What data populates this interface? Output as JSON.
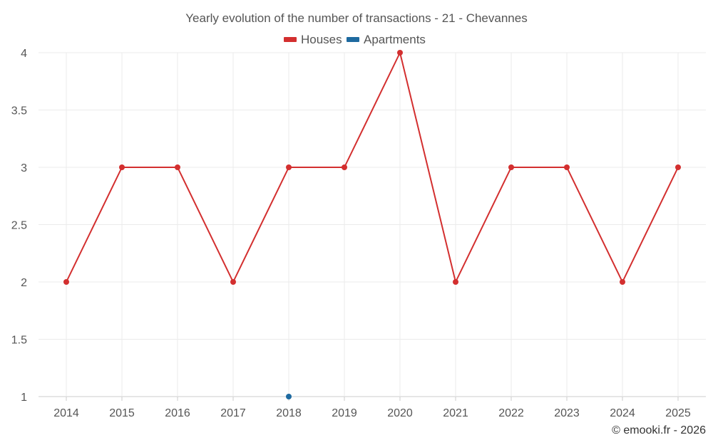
{
  "chart_data": {
    "type": "line",
    "title": "Yearly evolution of the number of transactions - 21 - Chevannes",
    "xlabel": "",
    "ylabel": "",
    "categories": [
      "2014",
      "2015",
      "2016",
      "2017",
      "2018",
      "2019",
      "2020",
      "2021",
      "2022",
      "2023",
      "2024",
      "2025"
    ],
    "yticks": [
      "1",
      "1.5",
      "2",
      "2.5",
      "3",
      "3.5",
      "4"
    ],
    "ylim": [
      1,
      4
    ],
    "grid": true,
    "legend_position": "top-center",
    "series": [
      {
        "name": "Houses",
        "color": "#d32f2f",
        "values": [
          2,
          3,
          3,
          2,
          3,
          3,
          4,
          2,
          3,
          3,
          2,
          3
        ]
      },
      {
        "name": "Apartments",
        "color": "#1e6aa0",
        "values": [
          null,
          null,
          null,
          null,
          1,
          null,
          null,
          null,
          null,
          null,
          null,
          null
        ]
      }
    ]
  },
  "credit": "© emooki.fr - 2026"
}
